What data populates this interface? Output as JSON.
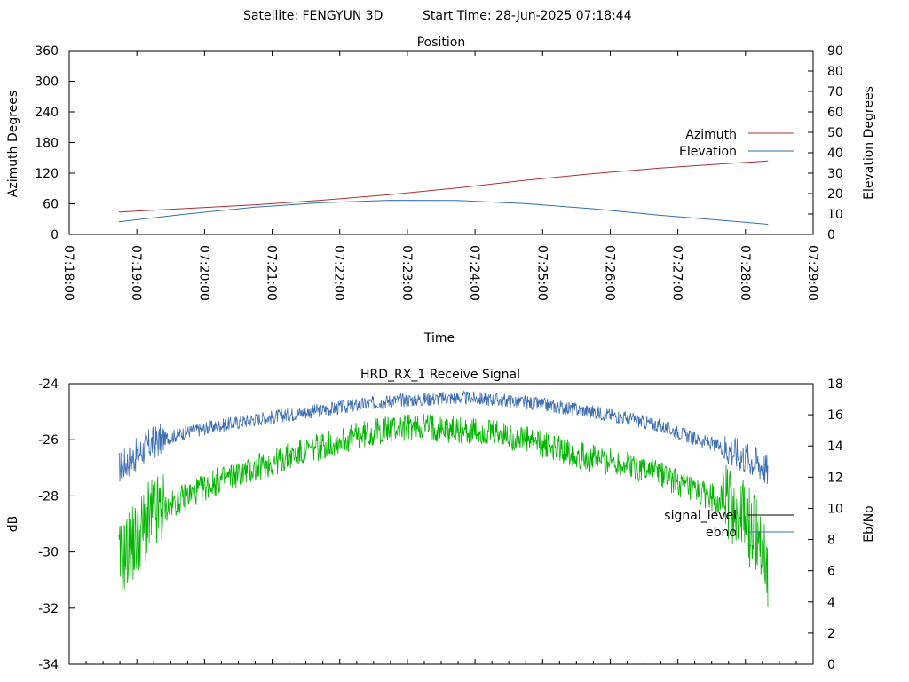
{
  "header": {
    "satellite_label": "Satellite: FENGYUN 3D",
    "start_time_label": "Start Time: 28-Jun-2025 07:18:44"
  },
  "chart_data": [
    {
      "type": "line",
      "title": "Position",
      "xlabel": "Time",
      "ylabel": "Azimuth Degrees",
      "y2label": "Elevation Degrees",
      "xlim": [
        "07:18:00",
        "07:29:00"
      ],
      "ylim": [
        0,
        360
      ],
      "y2lim": [
        0,
        90
      ],
      "x_ticks": [
        "07:18:00",
        "07:19:00",
        "07:20:00",
        "07:21:00",
        "07:22:00",
        "07:23:00",
        "07:24:00",
        "07:25:00",
        "07:26:00",
        "07:27:00",
        "07:28:00",
        "07:29:00"
      ],
      "y_ticks": [
        "0",
        "60",
        "120",
        "180",
        "240",
        "300",
        "360"
      ],
      "y2_ticks": [
        "0",
        "10",
        "20",
        "30",
        "40",
        "50",
        "60",
        "70",
        "80",
        "90"
      ],
      "grid": false,
      "legend_position": "right",
      "series": [
        {
          "name": "Azimuth",
          "axis": "left",
          "color": "#b03030",
          "x": [
            "07:18:44",
            "07:19:44",
            "07:20:44",
            "07:21:44",
            "07:22:44",
            "07:23:44",
            "07:24:44",
            "07:25:44",
            "07:26:44",
            "07:27:44",
            "07:28:20"
          ],
          "values": [
            44,
            51,
            58,
            67,
            78,
            91,
            106,
            119,
            130,
            139,
            144
          ]
        },
        {
          "name": "Elevation",
          "axis": "right",
          "color": "#3070b0",
          "x": [
            "07:18:44",
            "07:19:44",
            "07:20:44",
            "07:21:44",
            "07:22:44",
            "07:23:44",
            "07:24:44",
            "07:25:44",
            "07:26:44",
            "07:27:44",
            "07:28:20"
          ],
          "values": [
            6.2,
            10.0,
            13.3,
            15.5,
            16.7,
            16.6,
            15.1,
            12.6,
            9.4,
            6.7,
            5.0
          ]
        }
      ]
    },
    {
      "type": "line",
      "title": "HRD_RX_1 Receive Signal",
      "ylabel": "dB",
      "y2label": "Eb/No",
      "xlim": [
        "07:18:00",
        "07:29:00"
      ],
      "ylim": [
        -34,
        -24
      ],
      "y2lim": [
        0,
        18
      ],
      "y_ticks": [
        "-34",
        "-32",
        "-30",
        "-28",
        "-26",
        "-24"
      ],
      "y2_ticks": [
        "0",
        "2",
        "4",
        "6",
        "8",
        "10",
        "12",
        "14",
        "16",
        "18"
      ],
      "grid": false,
      "legend_position": "right",
      "series": [
        {
          "name": "signal_level",
          "axis": "left",
          "color": "#000000",
          "legend_only": true,
          "values": []
        },
        {
          "name": "ebno",
          "axis": "right",
          "color": "#3c6eb4",
          "x": [
            "07:18:44",
            "07:19:14",
            "07:19:44",
            "07:20:14",
            "07:20:44",
            "07:21:14",
            "07:21:44",
            "07:22:14",
            "07:22:44",
            "07:23:14",
            "07:23:44",
            "07:24:14",
            "07:24:44",
            "07:25:14",
            "07:25:44",
            "07:26:14",
            "07:26:44",
            "07:27:14",
            "07:27:44",
            "07:28:14",
            "07:28:20"
          ],
          "values": [
            12.6,
            14.2,
            14.9,
            15.3,
            15.7,
            16.0,
            16.3,
            16.6,
            16.9,
            17.0,
            17.1,
            17.0,
            16.8,
            16.5,
            16.2,
            15.8,
            15.3,
            14.5,
            13.8,
            12.8,
            12.4
          ]
        },
        {
          "name": "",
          "axis": "right",
          "color": "#00b400",
          "x": [
            "07:18:44",
            "07:19:14",
            "07:19:44",
            "07:20:14",
            "07:20:44",
            "07:21:14",
            "07:21:44",
            "07:22:14",
            "07:22:44",
            "07:23:14",
            "07:23:44",
            "07:24:14",
            "07:24:44",
            "07:25:14",
            "07:25:44",
            "07:26:14",
            "07:26:44",
            "07:27:14",
            "07:27:44",
            "07:28:14",
            "07:28:20"
          ],
          "values": [
            6.5,
            9.5,
            10.8,
            11.8,
            12.5,
            13.3,
            14.0,
            14.6,
            15.1,
            15.3,
            15.0,
            14.8,
            14.4,
            13.8,
            13.2,
            12.8,
            12.3,
            11.0,
            10.5,
            8.0,
            6.0
          ]
        }
      ]
    }
  ]
}
